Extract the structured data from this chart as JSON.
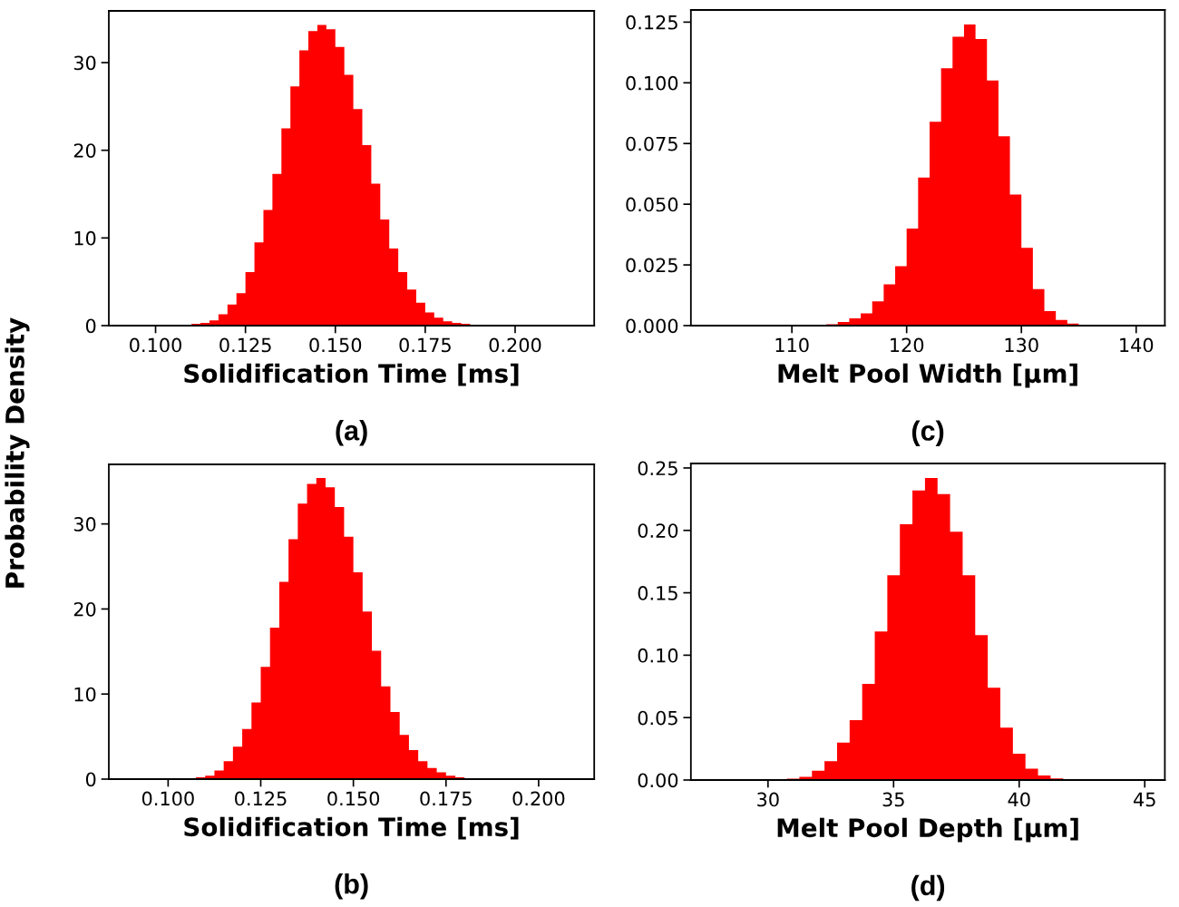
{
  "chart_data": [
    {
      "type": "histogram",
      "xlabel": "Solidification Time [ms]",
      "ylabel": "Probability Density",
      "annotations": [
        "(a)"
      ],
      "color": "#ff0000",
      "bins": [
        0.11,
        0.1125,
        0.115,
        0.1175,
        0.12,
        0.1225,
        0.125,
        0.1275,
        0.13,
        0.1325,
        0.135,
        0.1375,
        0.14,
        0.1425,
        0.145,
        0.1475,
        0.15,
        0.1525,
        0.155,
        0.1575,
        0.16,
        0.1625,
        0.165,
        0.1675,
        0.17,
        0.1725,
        0.175,
        0.1775,
        0.18,
        0.1825,
        0.185,
        0.1875
      ],
      "values": [
        0.2,
        0.3,
        0.6,
        1.3,
        2.4,
        3.7,
        6.1,
        9.5,
        13.2,
        17.3,
        22.5,
        27.3,
        31.4,
        33.6,
        34.3,
        33.8,
        31.8,
        28.6,
        24.7,
        20.6,
        16.2,
        12.1,
        8.8,
        6.1,
        4.1,
        2.6,
        1.5,
        0.9,
        0.5,
        0.3,
        0.2
      ],
      "xlim": [
        0.087,
        0.222
      ],
      "xticks": [
        {
          "value": 0.1,
          "label": "0.100"
        },
        {
          "value": 0.125,
          "label": "0.125"
        },
        {
          "value": 0.15,
          "label": "0.150"
        },
        {
          "value": 0.175,
          "label": "0.175"
        },
        {
          "value": 0.2,
          "label": "0.200"
        }
      ],
      "ylim": [
        0,
        35.9
      ],
      "yticks": [
        0,
        10,
        20,
        30
      ],
      "grid": false
    },
    {
      "type": "histogram",
      "xlabel": "Solidification Time [ms]",
      "annotations": [
        "(b)"
      ],
      "color": "#ff0000",
      "bins": [
        0.1075,
        0.11,
        0.1125,
        0.115,
        0.1175,
        0.12,
        0.1225,
        0.125,
        0.1275,
        0.13,
        0.1325,
        0.135,
        0.1375,
        0.14,
        0.1425,
        0.145,
        0.1475,
        0.15,
        0.1525,
        0.155,
        0.1575,
        0.16,
        0.1625,
        0.165,
        0.1675,
        0.17,
        0.1725,
        0.175,
        0.1775,
        0.18
      ],
      "values": [
        0.2,
        0.4,
        1.0,
        2.1,
        3.8,
        5.9,
        9.0,
        13.2,
        17.8,
        23.2,
        28.2,
        32.4,
        34.7,
        35.4,
        34.3,
        32.0,
        28.5,
        24.3,
        19.7,
        15.1,
        10.9,
        7.9,
        5.2,
        3.4,
        2.1,
        1.3,
        0.8,
        0.4,
        0.2
      ],
      "xlim": [
        0.084,
        0.215
      ],
      "xticks": [
        {
          "value": 0.1,
          "label": "0.100"
        },
        {
          "value": 0.125,
          "label": "0.125"
        },
        {
          "value": 0.15,
          "label": "0.150"
        },
        {
          "value": 0.175,
          "label": "0.175"
        },
        {
          "value": 0.2,
          "label": "0.200"
        }
      ],
      "ylim": [
        0,
        37.0
      ],
      "yticks": [
        0,
        10,
        20,
        30
      ],
      "grid": false
    },
    {
      "type": "histogram",
      "xlabel": "Melt Pool Width [µm]",
      "annotations": [
        "(c)"
      ],
      "color": "#ff0000",
      "bins": [
        113,
        114,
        115,
        116,
        117,
        118,
        119,
        120,
        121,
        122,
        123,
        124,
        125,
        126,
        127,
        128,
        129,
        130,
        131,
        132,
        133,
        134,
        135
      ],
      "values": [
        0.0006,
        0.0015,
        0.003,
        0.005,
        0.01,
        0.017,
        0.0245,
        0.04,
        0.061,
        0.084,
        0.106,
        0.119,
        0.124,
        0.118,
        0.101,
        0.078,
        0.054,
        0.032,
        0.015,
        0.006,
        0.0023,
        0.0008
      ],
      "xlim": [
        101.2,
        142.5
      ],
      "xticks": [
        110,
        120,
        130,
        140
      ],
      "ylim": [
        0,
        0.13
      ],
      "yticks": [
        {
          "value": 0,
          "label": "0.000"
        },
        {
          "value": 0.025,
          "label": "0.025"
        },
        {
          "value": 0.05,
          "label": "0.050"
        },
        {
          "value": 0.075,
          "label": "0.075"
        },
        {
          "value": 0.1,
          "label": "0.100"
        },
        {
          "value": 0.125,
          "label": "0.125"
        }
      ],
      "grid": false
    },
    {
      "type": "histogram",
      "xlabel": "Melt Pool Depth [µm]",
      "annotations": [
        "(d)"
      ],
      "color": "#ff0000",
      "bins": [
        30.75,
        31.25,
        31.75,
        32.25,
        32.75,
        33.25,
        33.75,
        34.25,
        34.75,
        35.25,
        35.75,
        36.25,
        36.75,
        37.25,
        37.75,
        38.25,
        38.75,
        39.25,
        39.75,
        40.25,
        40.75,
        41.25,
        41.75
      ],
      "values": [
        0.001,
        0.0025,
        0.0075,
        0.015,
        0.03,
        0.048,
        0.077,
        0.119,
        0.164,
        0.205,
        0.232,
        0.242,
        0.229,
        0.199,
        0.164,
        0.116,
        0.074,
        0.042,
        0.021,
        0.009,
        0.0036,
        0.0012
      ],
      "xlim": [
        26.93,
        45.8
      ],
      "xticks": [
        30,
        35,
        40,
        45
      ],
      "ylim": [
        0,
        0.2536
      ],
      "yticks": [
        {
          "value": 0,
          "label": "0.00"
        },
        {
          "value": 0.05,
          "label": "0.05"
        },
        {
          "value": 0.1,
          "label": "0.10"
        },
        {
          "value": 0.15,
          "label": "0.15"
        },
        {
          "value": 0.2,
          "label": "0.20"
        },
        {
          "value": 0.25,
          "label": "0.25"
        }
      ],
      "grid": false
    }
  ]
}
